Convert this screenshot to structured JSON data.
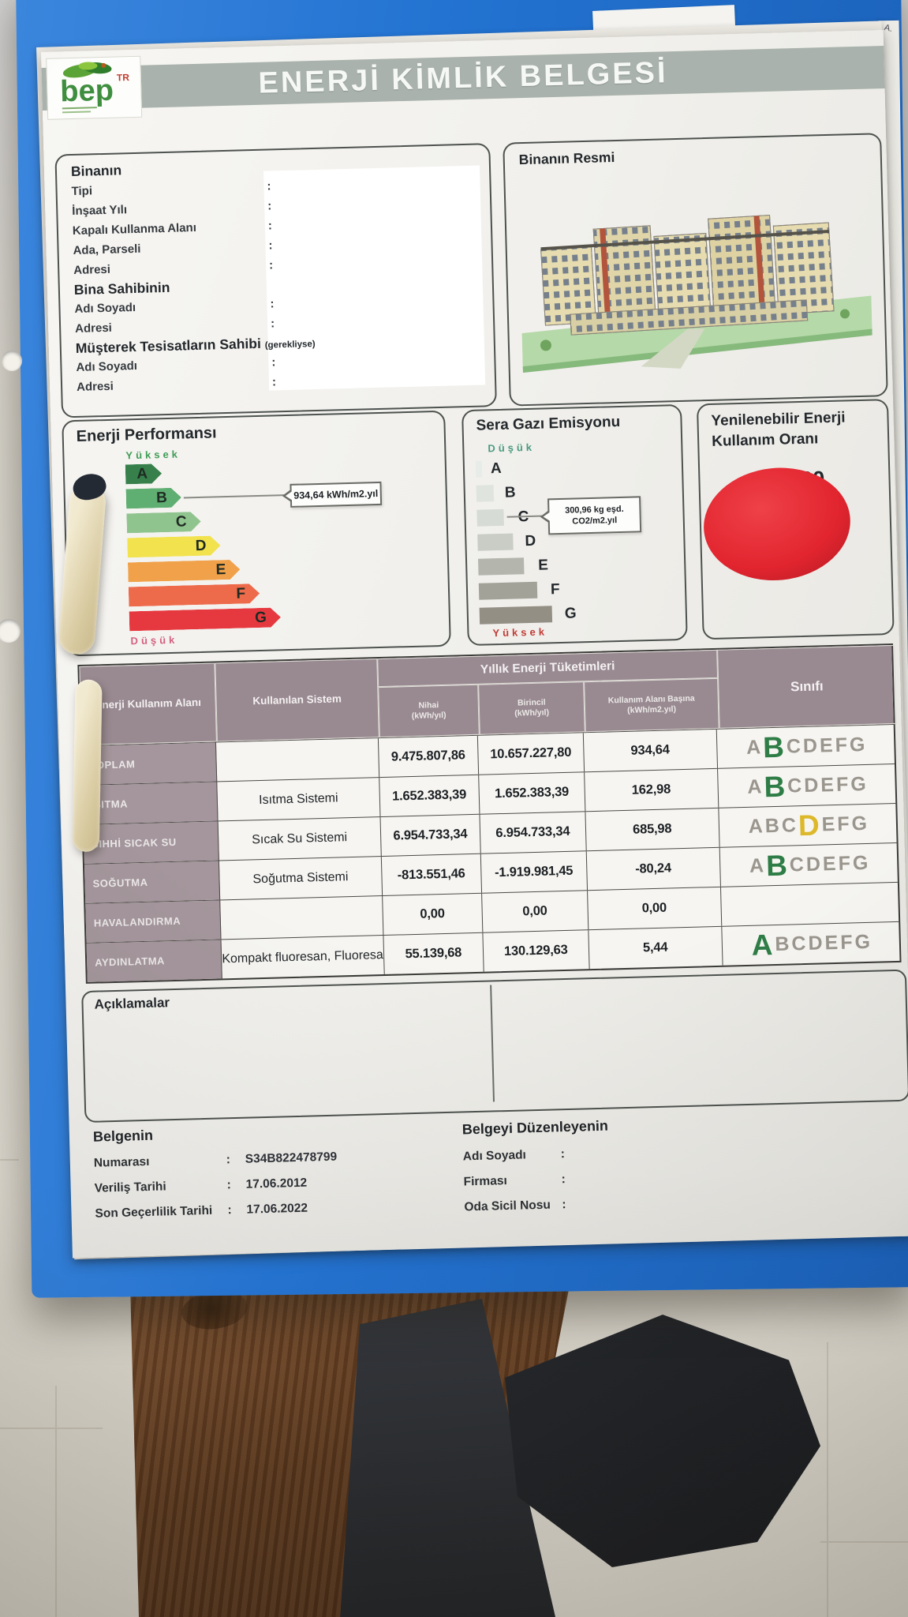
{
  "document": {
    "title": "ENERJİ KİMLİK BELGESİ",
    "logo": {
      "text": "bep",
      "sup": "TR"
    },
    "pen_mark": "A.",
    "colon": ":"
  },
  "building_info": {
    "group1_title": "Binanın",
    "group1_fields": [
      "Tipi",
      "İnşaat Yılı",
      "Kapalı Kullanma Alanı",
      "Ada, Parseli",
      "Adresi"
    ],
    "group2_title": "Bina Sahibinin",
    "group2_fields": [
      "Adı Soyadı",
      "Adresi"
    ],
    "group3_title": "Müşterek Tesisatların Sahibi",
    "group3_suffix": "(gerekliyse)",
    "group3_fields": [
      "Adı Soyadı",
      "Adresi"
    ]
  },
  "building_photo": {
    "title": "Binanın Resmi"
  },
  "energy_performance": {
    "title": "Enerji Performansı",
    "top_label": "Yüksek",
    "bottom_label": "Düşük",
    "classes": [
      "A",
      "B",
      "C",
      "D",
      "E",
      "F",
      "G"
    ],
    "class_colors": [
      "#37804c",
      "#5fae72",
      "#90c48e",
      "#f2e24d",
      "#f0a149",
      "#ed6a4b",
      "#e6393f"
    ],
    "selected_class": "B",
    "value_label": "934,64 kWh/m2.yıl"
  },
  "greenhouse_gas": {
    "title": "Sera Gazı Emisyonu",
    "top_label": "Düşük",
    "bottom_label": "Yüksek",
    "classes": [
      "A",
      "B",
      "C",
      "D",
      "E",
      "F",
      "G"
    ],
    "bar_colors": [
      "#e8ece8",
      "#dfe4df",
      "#d6dbd5",
      "#c9cdc6",
      "#b4b6ad",
      "#a3a298",
      "#948f85"
    ],
    "selected_class": "C",
    "value_label_line1": "300,96 kg eşd.",
    "value_label_line2": "CO2/m2.yıl"
  },
  "renewable_energy": {
    "title_line1": "Yenilenebilir Enerji",
    "title_line2": "Kullanım Oranı",
    "value": "%0,00",
    "pie_color": "#e2252f"
  },
  "consumption_table": {
    "col_area": "Enerji Kullanım Alanı",
    "col_system": "Kullanılan Sistem",
    "col_group": "Yıllık Enerji Tüketimleri",
    "subcols": [
      {
        "line1": "Nihai",
        "line2": "(kWh/yıl)"
      },
      {
        "line1": "Birincil",
        "line2": "(kWh/yıl)"
      },
      {
        "line1": "Kullanım Alanı Başına",
        "line2": "(kWh/m2.yıl)"
      }
    ],
    "col_class": "Sınıfı",
    "rows": [
      {
        "area": "TOPLAM",
        "system": "",
        "final": "9.475.807,86",
        "primary": "10.657.227,80",
        "per_area": "934,64",
        "rating": {
          "letters": "ABCDEFG",
          "selected": "B",
          "color": "#2e7d46"
        }
      },
      {
        "area": "ISITMA",
        "system": "Isıtma Sistemi",
        "final": "1.652.383,39",
        "primary": "1.652.383,39",
        "per_area": "162,98",
        "rating": {
          "letters": "ABCDEFG",
          "selected": "B",
          "color": "#2e7d46"
        }
      },
      {
        "area": "SIHHİ SICAK SU",
        "system": "Sıcak Su Sistemi",
        "final": "6.954.733,34",
        "primary": "6.954.733,34",
        "per_area": "685,98",
        "rating": {
          "letters": "ABCDEFG",
          "selected": "D",
          "color": "#dcb82a"
        }
      },
      {
        "area": "SOĞUTMA",
        "system": "Soğutma Sistemi",
        "final": "-813.551,46",
        "primary": "-1.919.981,45",
        "per_area": "-80,24",
        "rating": {
          "letters": "ABCDEFG",
          "selected": "B",
          "color": "#2e7d46"
        }
      },
      {
        "area": "HAVALANDIRMA",
        "system": "",
        "final": "0,00",
        "primary": "0,00",
        "per_area": "0,00",
        "rating": {
          "letters": "",
          "selected": "",
          "color": ""
        }
      },
      {
        "area": "AYDINLATMA",
        "system": "Kompakt fluoresan, Fluoresa",
        "final": "55.139,68",
        "primary": "130.129,63",
        "per_area": "5,44",
        "rating": {
          "letters": "ABCDEFG",
          "selected": "A",
          "color": "#2e7d46"
        }
      }
    ]
  },
  "notes": {
    "title": "Açıklamalar"
  },
  "certificate": {
    "title": "Belgenin",
    "rows": [
      {
        "label": "Numarası",
        "value": "S34B822478799"
      },
      {
        "label": "Veriliş Tarihi",
        "value": "17.06.2012"
      },
      {
        "label": "Son Geçerlilik Tarihi",
        "value": "17.06.2022"
      }
    ]
  },
  "issuer": {
    "title": "Belgeyi Düzenleyenin",
    "rows": [
      {
        "label": "Adı Soyadı",
        "value": ""
      },
      {
        "label": "Firması",
        "value": ""
      },
      {
        "label": "Oda Sicil Nosu",
        "value": ""
      }
    ]
  },
  "chart_data": [
    {
      "type": "bar",
      "title": "Enerji Performansı",
      "categories": [
        "A",
        "B",
        "C",
        "D",
        "E",
        "F",
        "G"
      ],
      "values": [
        1,
        2,
        3,
        4,
        5,
        6,
        7
      ],
      "selected_class": "B",
      "value_label": "934,64 kWh/m2.yıl",
      "high_label": "Yüksek",
      "low_label": "Düşük"
    },
    {
      "type": "bar",
      "title": "Sera Gazı Emisyonu",
      "categories": [
        "A",
        "B",
        "C",
        "D",
        "E",
        "F",
        "G"
      ],
      "values": [
        1,
        2,
        3,
        4,
        5,
        6,
        7
      ],
      "selected_class": "C",
      "value_label": "300,96 kg eşd. CO2/m2.yıl",
      "high_label": "Düşük",
      "low_label": "Yüksek"
    },
    {
      "type": "pie",
      "title": "Yenilenebilir Enerji Kullanım Oranı",
      "categories": [
        "Kullanım Oranı"
      ],
      "values": [
        0
      ],
      "value_label": "%0,00"
    }
  ]
}
